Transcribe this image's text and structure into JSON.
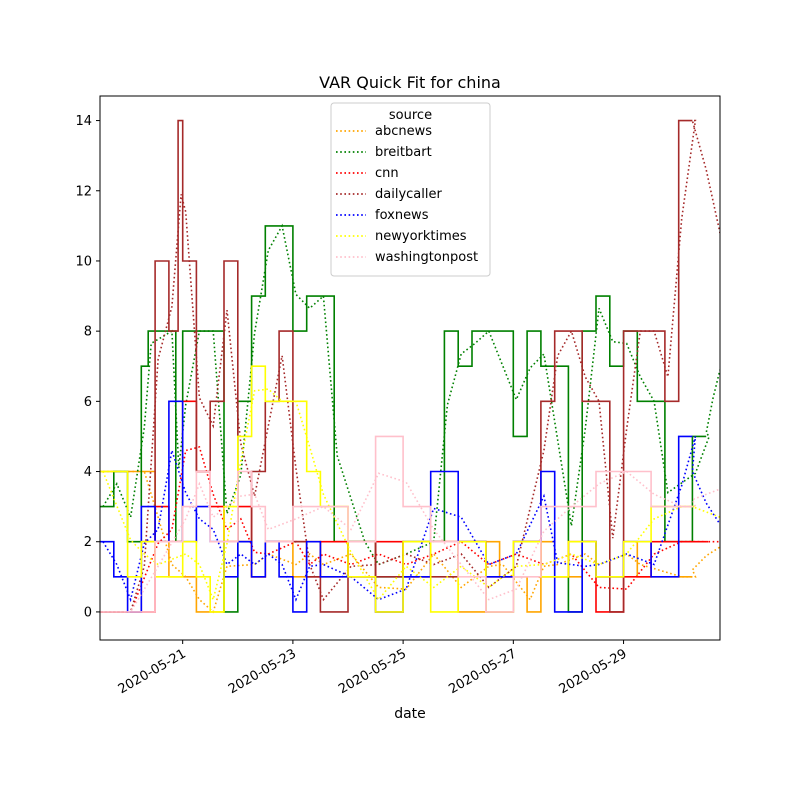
{
  "chart_data": {
    "type": "line",
    "title": "VAR Quick Fit for china",
    "xlabel": "date",
    "ylabel": "",
    "x_range": [
      "2020-05-19T12:00",
      "2020-05-30T18:00"
    ],
    "ylim": [
      -0.8,
      14.7
    ],
    "yticks": [
      0,
      2,
      4,
      6,
      8,
      10,
      12,
      14
    ],
    "xticks": [
      {
        "value": "2020-05-21",
        "label": "2020-05-21"
      },
      {
        "value": "2020-05-23",
        "label": "2020-05-23"
      },
      {
        "value": "2020-05-25",
        "label": "2020-05-25"
      },
      {
        "value": "2020-05-27",
        "label": "2020-05-27"
      },
      {
        "value": "2020-05-29",
        "label": "2020-05-29"
      }
    ],
    "grid": false,
    "legend": {
      "title": "source",
      "placement": "upper-center"
    },
    "line_styles": {
      "actual": "solid",
      "fitted": "dotted"
    },
    "series": [
      {
        "name": "abcnews",
        "color": "#ffa500",
        "points": [
          [
            "2020-05-19T12:00",
            4
          ],
          [
            "2020-05-20T06:00",
            4
          ],
          [
            "2020-05-20T12:00",
            2
          ],
          [
            "2020-05-20T18:00",
            1
          ],
          [
            "2020-05-21T00:00",
            1
          ],
          [
            "2020-05-21T06:00",
            0
          ],
          [
            "2020-05-21T12:00",
            0
          ],
          [
            "2020-05-21T18:00",
            2
          ],
          [
            "2020-05-22T06:00",
            1
          ],
          [
            "2020-05-22T12:00",
            2
          ],
          [
            "2020-05-23T00:00",
            1
          ],
          [
            "2020-05-23T06:00",
            2
          ],
          [
            "2020-05-23T12:00",
            1
          ],
          [
            "2020-05-24T00:00",
            2
          ],
          [
            "2020-05-24T12:00",
            0
          ],
          [
            "2020-05-25T00:00",
            1
          ],
          [
            "2020-05-25T12:00",
            2
          ],
          [
            "2020-05-26T00:00",
            0
          ],
          [
            "2020-05-26T12:00",
            2
          ],
          [
            "2020-05-26T18:00",
            1
          ],
          [
            "2020-05-27T06:00",
            0
          ],
          [
            "2020-05-27T12:00",
            2
          ],
          [
            "2020-05-27T18:00",
            1
          ],
          [
            "2020-05-28T06:00",
            2
          ],
          [
            "2020-05-28T12:00",
            1
          ],
          [
            "2020-05-29T00:00",
            2
          ],
          [
            "2020-05-29T06:00",
            1
          ],
          [
            "2020-05-30T00:00",
            1
          ],
          [
            "2020-05-30T06:00",
            1
          ]
        ],
        "fitted_extension": [
          [
            "2020-05-30T06:00",
            1.2
          ],
          [
            "2020-05-30T12:00",
            1.6
          ],
          [
            "2020-05-30T18:00",
            1.85
          ]
        ]
      },
      {
        "name": "breitbart",
        "color": "#008000",
        "points": [
          [
            "2020-05-19T12:00",
            3
          ],
          [
            "2020-05-19T18:00",
            4
          ],
          [
            "2020-05-20T00:00",
            2
          ],
          [
            "2020-05-20T06:00",
            7
          ],
          [
            "2020-05-20T09:00",
            8
          ],
          [
            "2020-05-20T18:00",
            8
          ],
          [
            "2020-05-20T21:00",
            2
          ],
          [
            "2020-05-21T00:00",
            8
          ],
          [
            "2020-05-21T06:00",
            8
          ],
          [
            "2020-05-21T12:00",
            8
          ],
          [
            "2020-05-21T18:00",
            0
          ],
          [
            "2020-05-22T00:00",
            6
          ],
          [
            "2020-05-22T06:00",
            9
          ],
          [
            "2020-05-22T12:00",
            11
          ],
          [
            "2020-05-22T18:00",
            11
          ],
          [
            "2020-05-23T00:00",
            8
          ],
          [
            "2020-05-23T06:00",
            9
          ],
          [
            "2020-05-23T12:00",
            9
          ],
          [
            "2020-05-23T18:00",
            2
          ],
          [
            "2020-05-24T06:00",
            2
          ],
          [
            "2020-05-24T12:00",
            1
          ],
          [
            "2020-05-25T00:00",
            2
          ],
          [
            "2020-05-25T12:00",
            2
          ],
          [
            "2020-05-25T18:00",
            8
          ],
          [
            "2020-05-26T00:00",
            7
          ],
          [
            "2020-05-26T06:00",
            8
          ],
          [
            "2020-05-26T12:00",
            8
          ],
          [
            "2020-05-27T00:00",
            5
          ],
          [
            "2020-05-27T06:00",
            8
          ],
          [
            "2020-05-27T12:00",
            7
          ],
          [
            "2020-05-28T00:00",
            0
          ],
          [
            "2020-05-28T06:00",
            8
          ],
          [
            "2020-05-28T12:00",
            9
          ],
          [
            "2020-05-28T18:00",
            7
          ],
          [
            "2020-05-29T00:00",
            8
          ],
          [
            "2020-05-29T06:00",
            6
          ],
          [
            "2020-05-29T12:00",
            6
          ],
          [
            "2020-05-29T18:00",
            2
          ],
          [
            "2020-05-30T06:00",
            5
          ],
          [
            "2020-05-30T12:00",
            5
          ]
        ],
        "fitted_extension": [
          [
            "2020-05-30T12:00",
            5.1
          ],
          [
            "2020-05-30T15:00",
            6.1
          ],
          [
            "2020-05-30T18:00",
            6.9
          ]
        ]
      },
      {
        "name": "cnn",
        "color": "#ff0000",
        "points": [
          [
            "2020-05-19T12:00",
            0
          ],
          [
            "2020-05-20T00:00",
            0
          ],
          [
            "2020-05-20T12:00",
            3
          ],
          [
            "2020-05-20T18:00",
            2
          ],
          [
            "2020-05-21T00:00",
            6
          ],
          [
            "2020-05-21T06:00",
            4
          ],
          [
            "2020-05-21T12:00",
            3
          ],
          [
            "2020-05-21T18:00",
            2
          ],
          [
            "2020-05-22T00:00",
            3
          ],
          [
            "2020-05-22T06:00",
            1
          ],
          [
            "2020-05-22T12:00",
            2
          ],
          [
            "2020-05-23T00:00",
            2
          ],
          [
            "2020-05-23T06:00",
            1
          ],
          [
            "2020-05-23T12:00",
            2
          ],
          [
            "2020-05-24T00:00",
            1
          ],
          [
            "2020-05-24T12:00",
            2
          ],
          [
            "2020-05-25T00:00",
            1
          ],
          [
            "2020-05-25T12:00",
            2
          ],
          [
            "2020-05-26T00:00",
            2
          ],
          [
            "2020-05-26T12:00",
            1
          ],
          [
            "2020-05-27T00:00",
            2
          ],
          [
            "2020-05-27T12:00",
            1
          ],
          [
            "2020-05-28T00:00",
            2
          ],
          [
            "2020-05-28T12:00",
            0
          ],
          [
            "2020-05-29T00:00",
            1
          ],
          [
            "2020-05-29T12:00",
            2
          ],
          [
            "2020-05-30T00:00",
            2
          ],
          [
            "2020-05-30T12:00",
            2
          ]
        ],
        "fitted_extension": [
          [
            "2020-05-30T12:00",
            2
          ],
          [
            "2020-05-30T18:00",
            2
          ]
        ]
      },
      {
        "name": "dailycaller",
        "color": "#a52a2a",
        "points": [
          [
            "2020-05-19T12:00",
            0
          ],
          [
            "2020-05-20T00:00",
            0
          ],
          [
            "2020-05-20T06:00",
            2
          ],
          [
            "2020-05-20T12:00",
            10
          ],
          [
            "2020-05-20T18:00",
            8
          ],
          [
            "2020-05-20T22:00",
            14
          ],
          [
            "2020-05-21T00:00",
            10
          ],
          [
            "2020-05-21T06:00",
            4
          ],
          [
            "2020-05-21T12:00",
            6
          ],
          [
            "2020-05-21T18:00",
            10
          ],
          [
            "2020-05-22T00:00",
            2
          ],
          [
            "2020-05-22T06:00",
            4
          ],
          [
            "2020-05-22T12:00",
            6
          ],
          [
            "2020-05-22T18:00",
            8
          ],
          [
            "2020-05-23T00:00",
            2
          ],
          [
            "2020-05-23T06:00",
            1
          ],
          [
            "2020-05-23T12:00",
            0
          ],
          [
            "2020-05-24T00:00",
            2
          ],
          [
            "2020-05-24T12:00",
            1
          ],
          [
            "2020-05-25T00:00",
            2
          ],
          [
            "2020-05-25T12:00",
            1
          ],
          [
            "2020-05-26T00:00",
            2
          ],
          [
            "2020-05-26T12:00",
            0
          ],
          [
            "2020-05-27T00:00",
            2
          ],
          [
            "2020-05-27T12:00",
            6
          ],
          [
            "2020-05-27T18:00",
            8
          ],
          [
            "2020-05-28T00:00",
            8
          ],
          [
            "2020-05-28T06:00",
            6
          ],
          [
            "2020-05-28T12:00",
            6
          ],
          [
            "2020-05-28T18:00",
            0
          ],
          [
            "2020-05-29T00:00",
            8
          ],
          [
            "2020-05-29T06:00",
            8
          ],
          [
            "2020-05-29T12:00",
            8
          ],
          [
            "2020-05-29T18:00",
            6
          ],
          [
            "2020-05-30T00:00",
            14
          ],
          [
            "2020-05-30T06:00",
            14
          ]
        ],
        "fitted_extension": [
          [
            "2020-05-30T06:00",
            14
          ],
          [
            "2020-05-30T12:00",
            12.6
          ],
          [
            "2020-05-30T18:00",
            10.8
          ]
        ]
      },
      {
        "name": "foxnews",
        "color": "#0000ff",
        "points": [
          [
            "2020-05-19T12:00",
            2
          ],
          [
            "2020-05-19T18:00",
            1
          ],
          [
            "2020-05-20T00:00",
            0
          ],
          [
            "2020-05-20T06:00",
            3
          ],
          [
            "2020-05-20T12:00",
            2
          ],
          [
            "2020-05-20T18:00",
            6
          ],
          [
            "2020-05-21T00:00",
            2
          ],
          [
            "2020-05-21T06:00",
            3
          ],
          [
            "2020-05-21T12:00",
            2
          ],
          [
            "2020-05-21T18:00",
            1
          ],
          [
            "2020-05-22T00:00",
            2
          ],
          [
            "2020-05-22T06:00",
            1
          ],
          [
            "2020-05-22T12:00",
            2
          ],
          [
            "2020-05-22T18:00",
            1
          ],
          [
            "2020-05-23T00:00",
            0
          ],
          [
            "2020-05-23T06:00",
            2
          ],
          [
            "2020-05-23T12:00",
            1
          ],
          [
            "2020-05-24T00:00",
            1
          ],
          [
            "2020-05-24T12:00",
            0
          ],
          [
            "2020-05-25T00:00",
            1
          ],
          [
            "2020-05-25T12:00",
            4
          ],
          [
            "2020-05-26T00:00",
            2
          ],
          [
            "2020-05-26T12:00",
            1
          ],
          [
            "2020-05-27T00:00",
            2
          ],
          [
            "2020-05-27T12:00",
            4
          ],
          [
            "2020-05-27T18:00",
            0
          ],
          [
            "2020-05-28T06:00",
            2
          ],
          [
            "2020-05-28T12:00",
            1
          ],
          [
            "2020-05-29T00:00",
            2
          ],
          [
            "2020-05-29T12:00",
            1
          ],
          [
            "2020-05-30T00:00",
            5
          ],
          [
            "2020-05-30T06:00",
            5
          ]
        ],
        "fitted_extension": [
          [
            "2020-05-30T06:00",
            4
          ],
          [
            "2020-05-30T12:00",
            3.1
          ],
          [
            "2020-05-30T18:00",
            2.5
          ]
        ]
      },
      {
        "name": "newyorktimes",
        "color": "#ffff00",
        "points": [
          [
            "2020-05-19T12:00",
            4
          ],
          [
            "2020-05-20T00:00",
            1
          ],
          [
            "2020-05-20T06:00",
            2
          ],
          [
            "2020-05-20T12:00",
            1
          ],
          [
            "2020-05-21T00:00",
            2
          ],
          [
            "2020-05-21T06:00",
            1
          ],
          [
            "2020-05-21T12:00",
            0
          ],
          [
            "2020-05-21T18:00",
            3
          ],
          [
            "2020-05-22T00:00",
            5
          ],
          [
            "2020-05-22T06:00",
            7
          ],
          [
            "2020-05-22T12:00",
            6
          ],
          [
            "2020-05-22T18:00",
            6
          ],
          [
            "2020-05-23T00:00",
            6
          ],
          [
            "2020-05-23T06:00",
            4
          ],
          [
            "2020-05-23T12:00",
            3
          ],
          [
            "2020-05-24T00:00",
            1
          ],
          [
            "2020-05-24T12:00",
            0
          ],
          [
            "2020-05-25T00:00",
            2
          ],
          [
            "2020-05-25T12:00",
            0
          ],
          [
            "2020-05-26T00:00",
            2
          ],
          [
            "2020-05-26T12:00",
            0
          ],
          [
            "2020-05-27T00:00",
            2
          ],
          [
            "2020-05-27T12:00",
            1
          ],
          [
            "2020-05-28T00:00",
            2
          ],
          [
            "2020-05-28T12:00",
            1
          ],
          [
            "2020-05-29T00:00",
            2
          ],
          [
            "2020-05-29T12:00",
            3
          ],
          [
            "2020-05-30T00:00",
            3
          ],
          [
            "2020-05-30T06:00",
            3
          ]
        ],
        "fitted_extension": [
          [
            "2020-05-30T06:00",
            3
          ],
          [
            "2020-05-30T18:00",
            2.7
          ]
        ]
      },
      {
        "name": "washingtonpost",
        "color": "#ffc0cb",
        "points": [
          [
            "2020-05-19T12:00",
            0
          ],
          [
            "2020-05-20T00:00",
            0
          ],
          [
            "2020-05-20T12:00",
            2
          ],
          [
            "2020-05-21T00:00",
            3
          ],
          [
            "2020-05-21T06:00",
            4
          ],
          [
            "2020-05-21T12:00",
            2
          ],
          [
            "2020-05-22T00:00",
            4
          ],
          [
            "2020-05-22T06:00",
            3
          ],
          [
            "2020-05-22T12:00",
            2
          ],
          [
            "2020-05-23T00:00",
            3
          ],
          [
            "2020-05-23T12:00",
            3
          ],
          [
            "2020-05-24T00:00",
            2
          ],
          [
            "2020-05-24T12:00",
            5
          ],
          [
            "2020-05-25T00:00",
            3
          ],
          [
            "2020-05-25T12:00",
            2
          ],
          [
            "2020-05-26T00:00",
            1
          ],
          [
            "2020-05-26T12:00",
            0
          ],
          [
            "2020-05-27T00:00",
            1
          ],
          [
            "2020-05-27T12:00",
            3
          ],
          [
            "2020-05-28T00:00",
            3
          ],
          [
            "2020-05-28T12:00",
            4
          ],
          [
            "2020-05-29T00:00",
            4
          ],
          [
            "2020-05-29T12:00",
            3
          ],
          [
            "2020-05-30T00:00",
            3
          ],
          [
            "2020-05-30T06:00",
            3
          ]
        ],
        "fitted_extension": [
          [
            "2020-05-30T06:00",
            3.2
          ],
          [
            "2020-05-30T18:00",
            3.5
          ]
        ]
      }
    ]
  }
}
